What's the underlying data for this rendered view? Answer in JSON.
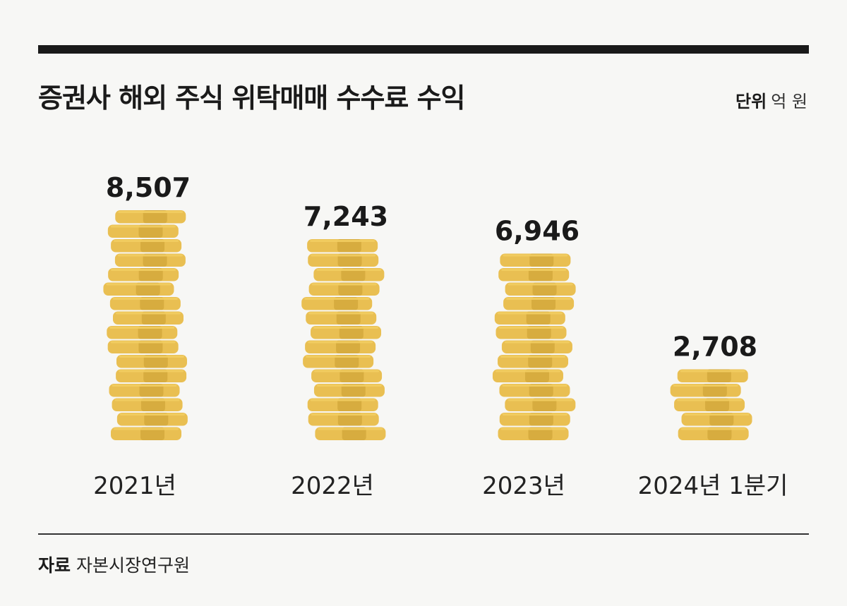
{
  "title": "증권사 해외 주식 위탁매매 수수료 수익",
  "unit": {
    "label": "단위",
    "value": "억 원"
  },
  "source": {
    "label": "자료",
    "value": "자본시장연구원"
  },
  "colors": {
    "coin_main": "#e9bf52",
    "coin_shade": "#d4a83c",
    "coin_light": "#f2cd62",
    "rule": "#1a1a1a"
  },
  "chart_data": {
    "type": "bar",
    "categories": [
      "2021년",
      "2022년",
      "2023년",
      "2024년 1분기"
    ],
    "values": [
      8507,
      7243,
      6946,
      2708
    ],
    "value_labels": [
      "8,507",
      "7,243",
      "6,946",
      "2,708"
    ],
    "title": "증권사 해외 주식 위탁매매 수수료 수익",
    "ylabel": "억 원",
    "grid": false,
    "legend": "none"
  }
}
